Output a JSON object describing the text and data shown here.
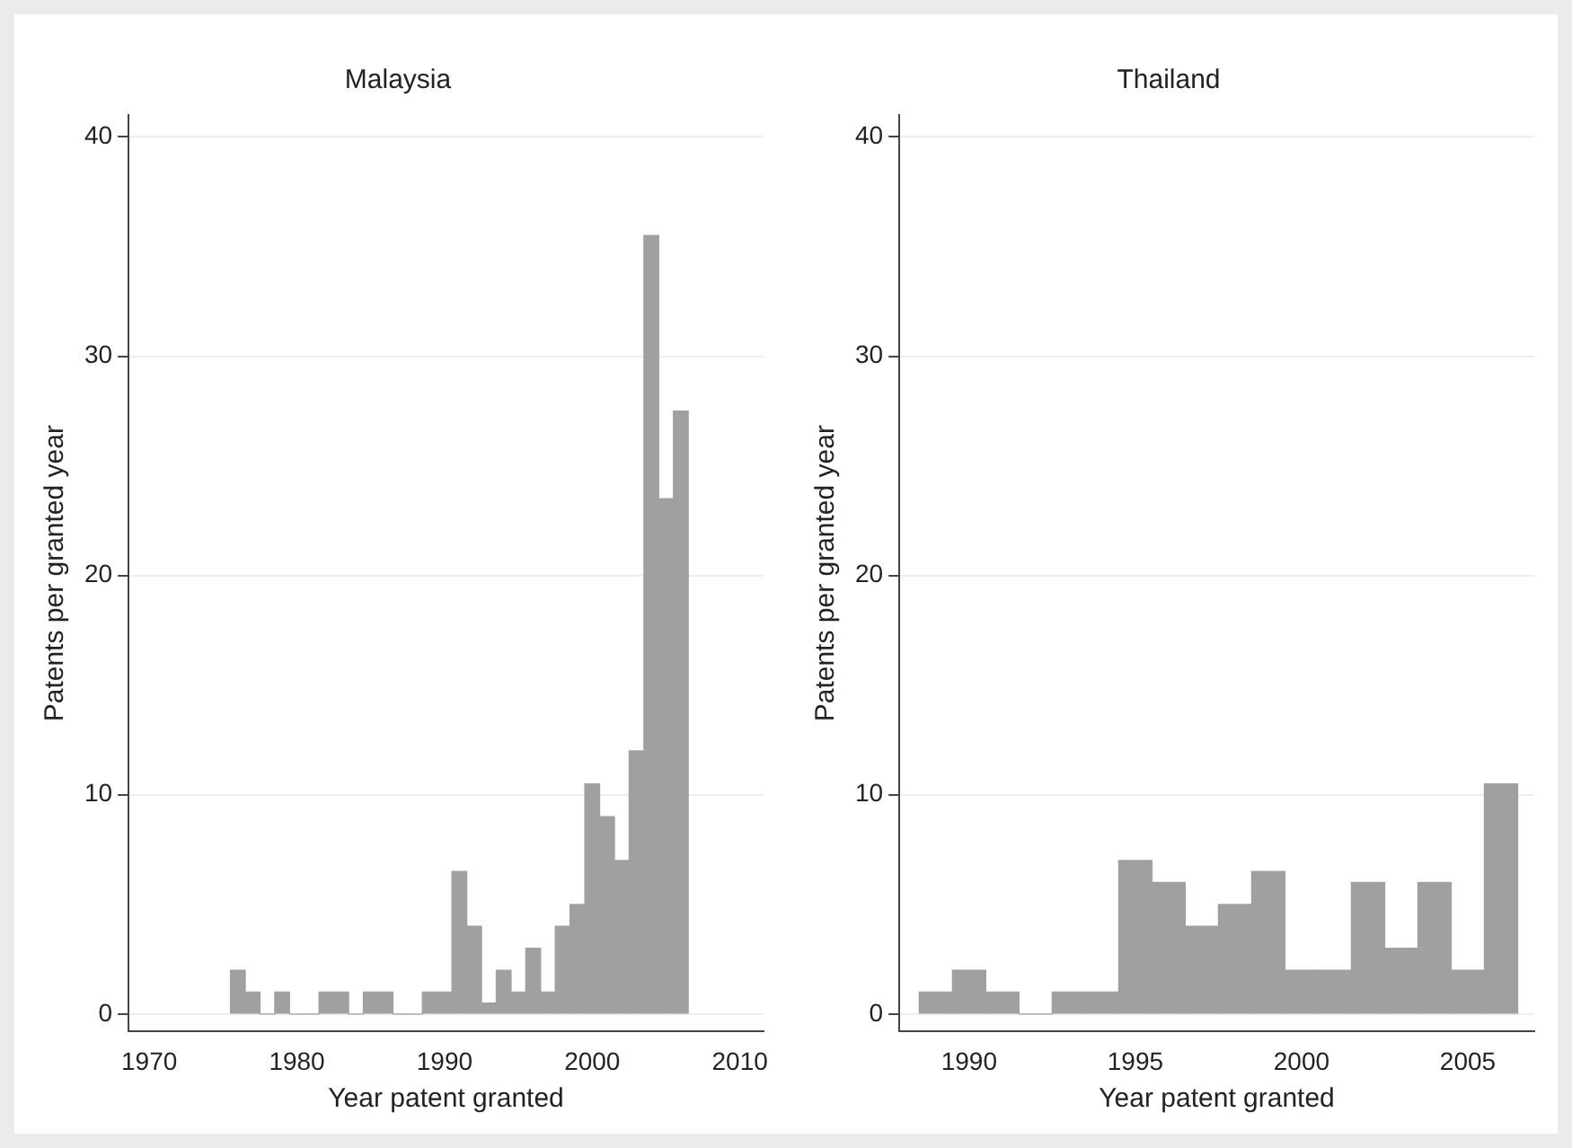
{
  "chart_data": [
    {
      "type": "histogram",
      "title": "Malaysia",
      "xlabel": "Year patent granted",
      "ylabel": "Patents per granted year",
      "bins": [
        1975.5,
        1976.5,
        1977.5,
        1978.5,
        1979.5,
        1980.5,
        1981.5,
        1982.5,
        1983.5,
        1984.5,
        1985.5,
        1986.5,
        1987.5,
        1988.5,
        1989.5,
        1990.5,
        1991.5,
        1992.5,
        1993.5,
        1994.5,
        1995.5,
        1996.5,
        1997.5,
        1998.5,
        1999.5,
        2000.5,
        2001.5,
        2002.5,
        2003.5,
        2004.5,
        2005.5,
        2006.5
      ],
      "values": [
        2,
        1,
        0,
        1,
        0,
        0,
        1,
        1,
        0,
        1,
        1,
        0,
        0,
        1,
        1,
        6.5,
        4,
        0.5,
        2,
        1,
        3,
        1,
        4,
        5,
        10.5,
        9,
        7,
        12,
        35.5,
        23.5,
        27.5
      ],
      "color": "#a0a0a0",
      "xlim": [
        1968.6,
        2011.6
      ],
      "xticks": [
        1970,
        1980,
        1990,
        2000,
        2010
      ],
      "ylim": [
        -0.8,
        41
      ],
      "yticks": [
        0,
        10,
        20,
        30,
        40
      ],
      "grid": "y"
    },
    {
      "type": "histogram",
      "title": "Thailand",
      "xlabel": "Year patent granted",
      "ylabel": "Patents per granted year",
      "bins": [
        1988.5,
        1989.5,
        1990.5,
        1991.5,
        1992.5,
        1993.5,
        1994.5,
        1995.5,
        1996.5,
        1997.5,
        1998.5,
        1999.5,
        2000.5,
        2001.5,
        2002.5,
        2003.5,
        2004.5,
        2005.5,
        2006.5
      ],
      "values": [
        1,
        2,
        1,
        0,
        1,
        1,
        7,
        6,
        4,
        5,
        6.5,
        2,
        2,
        6,
        3,
        6,
        2,
        10.5
      ],
      "color": "#a0a0a0",
      "xlim": [
        1987.9,
        2007
      ],
      "xticks": [
        1990,
        1995,
        2000,
        2005
      ],
      "ylim": [
        -0.8,
        41
      ],
      "yticks": [
        0,
        10,
        20,
        30,
        40
      ],
      "grid": "y"
    }
  ]
}
